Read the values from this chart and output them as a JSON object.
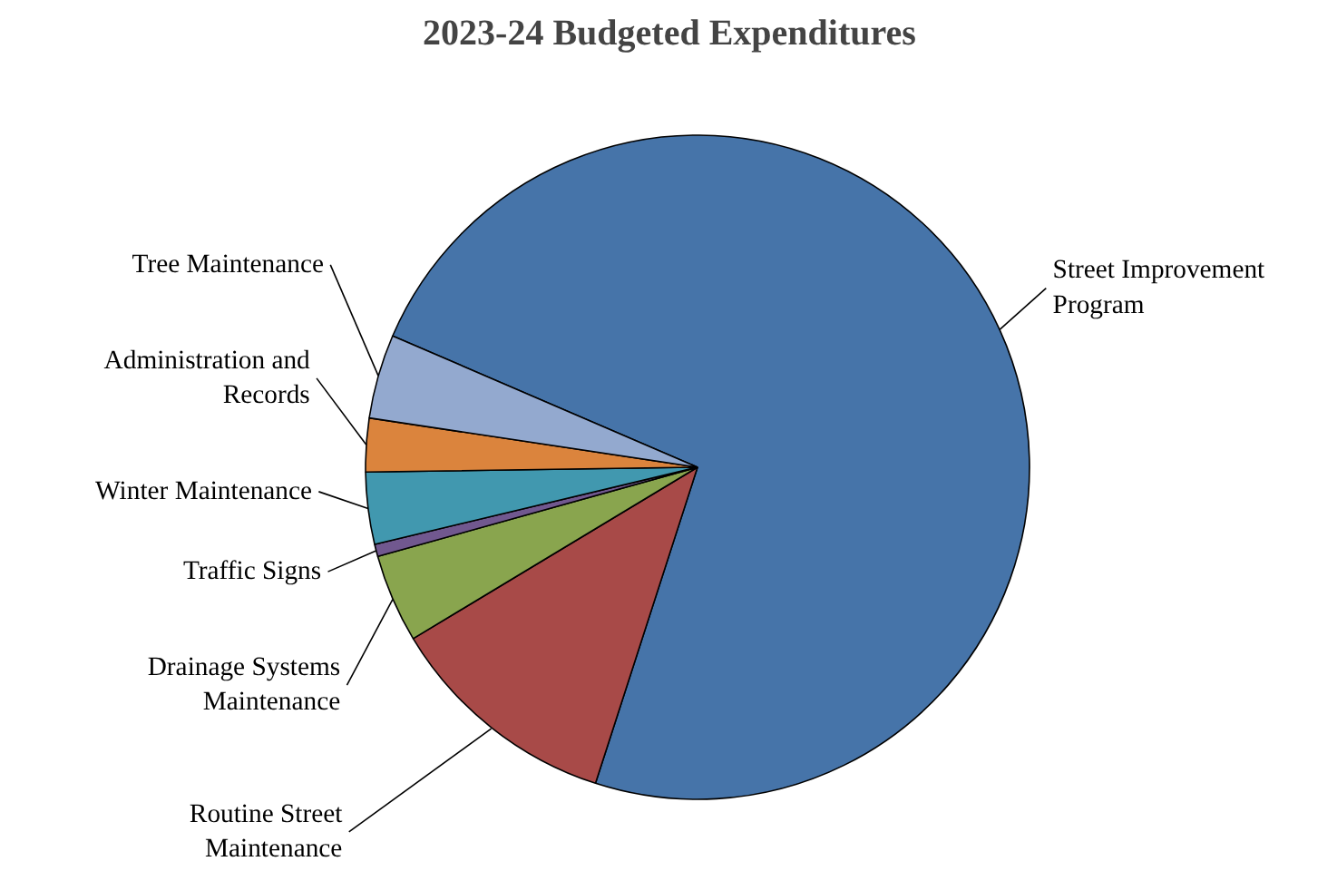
{
  "chart_data": {
    "type": "pie",
    "title": "2023-24 Budgeted Expenditures",
    "categories": [
      "Street Improvement Program",
      "Routine Street Maintenance",
      "Drainage Systems Maintenance",
      "Traffic Signs",
      "Winter Maintenance",
      "Administration and Records",
      "Tree Maintenance"
    ],
    "values": [
      73.5,
      11.4,
      4.3,
      0.6,
      3.5,
      2.6,
      4.1
    ],
    "colors": [
      "#4674a9",
      "#a84a48",
      "#89a54e",
      "#71588f",
      "#4198af",
      "#db843d",
      "#93a9cf"
    ]
  }
}
